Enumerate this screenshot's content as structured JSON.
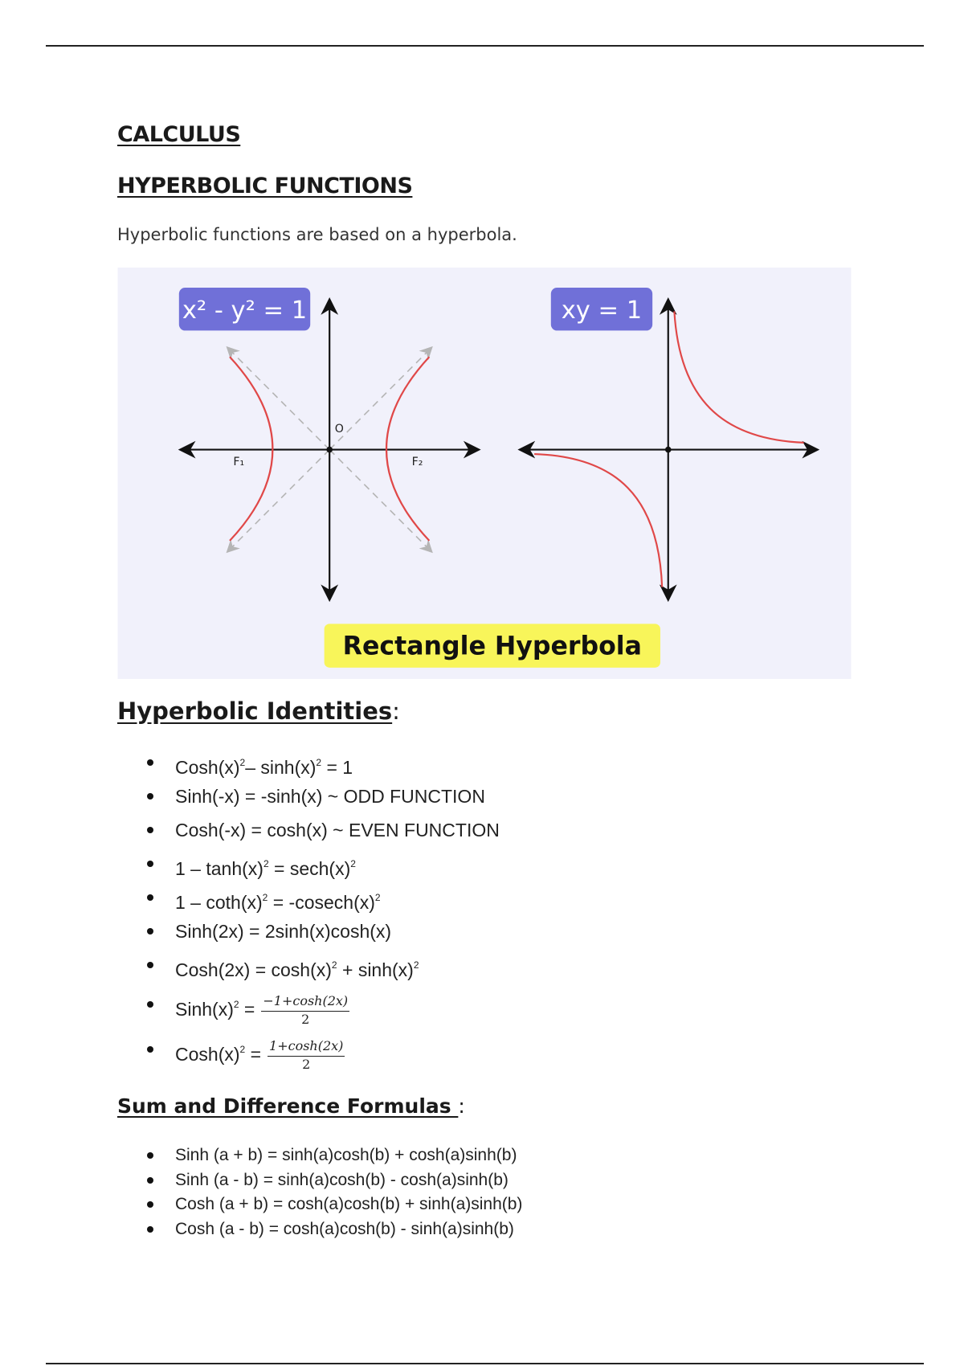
{
  "headings": {
    "calculus": "CALCULUS",
    "hyperbolic_functions": "HYPERBOLIC FUNCTIONS"
  },
  "intro": "Hyperbolic functions are based on a hyperbola.",
  "diagram": {
    "left_label": "x² - y² = 1",
    "right_label": "xy = 1",
    "origin_label": "O",
    "focus1_label": "F₁",
    "focus2_label": "F₂",
    "caption": "Rectangle Hyperbola",
    "colors": {
      "background": "#f1f1fb",
      "label_box": "#7070d8",
      "caption_box": "#f8f55a",
      "curve": "#e04848",
      "asymptote": "#b5b5b5"
    }
  },
  "identities": {
    "title": "Hyperbolic Identities",
    "colon": ":",
    "items": [
      {
        "parts": [
          "Cosh(x)",
          "2",
          "– sinh(x)",
          "2",
          "= 1"
        ]
      },
      {
        "text": "Sinh(-x) = -sinh(x)  ~ ODD FUNCTION"
      },
      {
        "text": "Cosh(-x) = cosh(x)  ~ EVEN FUNCTION"
      },
      {
        "parts": [
          "1 – tanh(x)",
          "2",
          "= sech(x)",
          "2",
          ""
        ]
      },
      {
        "parts": [
          "1 – coth(x)",
          "2",
          "= -cosech(x)",
          "2",
          ""
        ]
      },
      {
        "text": "Sinh(2x) = 2sinh(x)cosh(x)"
      },
      {
        "parts": [
          "Cosh(2x) = cosh(x)",
          "2",
          "+ sinh(x)",
          "2",
          ""
        ]
      },
      {
        "lhs": "Sinh(x)",
        "sup": "2",
        "eq": " =",
        "num": "−1+cosh(2x)",
        "den": "2"
      },
      {
        "lhs": "Cosh(x)",
        "sup": "2",
        "eq": " =",
        "num": "1+cosh(2x)",
        "den": "2"
      }
    ]
  },
  "sums": {
    "title": "Sum and Difference Formulas ",
    "colon": ":",
    "items": [
      "Sinh (a + b) = sinh(a)cosh(b) + cosh(a)sinh(b)",
      "Sinh (a - b) = sinh(a)cosh(b) - cosh(a)sinh(b)",
      "Cosh (a + b) = cosh(a)cosh(b) + sinh(a)sinh(b)",
      "Cosh (a - b) = cosh(a)cosh(b) - sinh(a)sinh(b)"
    ]
  }
}
